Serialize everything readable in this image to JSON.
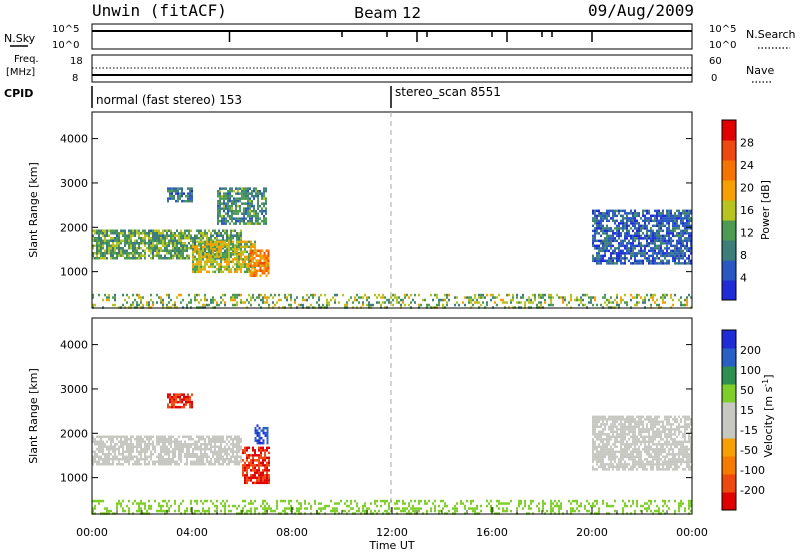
{
  "header": {
    "radar": "Unwin (fitACF)",
    "beam": "Beam 12",
    "date": "09/Aug/2009"
  },
  "panels": {
    "nsky": {
      "label": "N.Sky",
      "ticks": [
        "10^5",
        "10^0"
      ],
      "right_label": "N.Search",
      "right_ticks": [
        "10^5",
        "10^0"
      ]
    },
    "freq": {
      "label_line1": "Freq.",
      "label_line2": "[MHz]",
      "ticks": [
        "18",
        "8"
      ],
      "right_label": "Nave",
      "right_ticks": [
        "60",
        "0"
      ]
    },
    "cpid": {
      "label": "CPID",
      "modes": [
        "normal (fast stereo) 153",
        "stereo_scan 8551"
      ],
      "mode_change_hour": 12
    }
  },
  "colors": {
    "power": [
      "#1f2bd6",
      "#2a58c2",
      "#3d7f78",
      "#4d9a53",
      "#b7c41f",
      "#f5a000",
      "#f57300",
      "#ee4a10",
      "#e00000"
    ],
    "velocity": [
      "#e00000",
      "#ee4a10",
      "#f57a00",
      "#f5a000",
      "#c8c8c2",
      "#c8c8c2",
      "#7fcf2a",
      "#2f8f4f",
      "#2a5fc6",
      "#1f2bd6"
    ]
  },
  "chart_data": [
    {
      "type": "heatmap",
      "title": "",
      "xlabel": "",
      "ylabel": "Slant Range [km]",
      "xlim": [
        0,
        24
      ],
      "ylim": [
        180,
        4600
      ],
      "yticks": [
        "1000",
        "2000",
        "3000",
        "4000"
      ],
      "colorbar": {
        "label": "Power [dB]",
        "ticks": [
          "4",
          "8",
          "12",
          "16",
          "20",
          "24",
          "28"
        ],
        "range": [
          0,
          32
        ]
      },
      "regions": [
        {
          "x": [
            0,
            6.0
          ],
          "y": [
            1300,
            1950
          ],
          "value": 12
        },
        {
          "x": [
            4.0,
            6.5
          ],
          "y": [
            1000,
            1700
          ],
          "value": 16
        },
        {
          "x": [
            6.3,
            7.1
          ],
          "y": [
            900,
            1500
          ],
          "value": 22
        },
        {
          "x": [
            5.0,
            7.0
          ],
          "y": [
            2100,
            2900
          ],
          "value": 10
        },
        {
          "x": [
            3.0,
            4.0
          ],
          "y": [
            2600,
            2900
          ],
          "value": 8
        },
        {
          "x": [
            20.0,
            24.0
          ],
          "y": [
            1200,
            2400
          ],
          "value": 6
        },
        {
          "x": [
            0,
            24.0
          ],
          "y": [
            180,
            500
          ],
          "value": 14
        }
      ]
    },
    {
      "type": "heatmap",
      "title": "",
      "xlabel": "Time UT",
      "ylabel": "Slant Range [km]",
      "xlim": [
        0,
        24
      ],
      "ylim": [
        180,
        4600
      ],
      "xticks": [
        "00:00",
        "04:00",
        "08:00",
        "12:00",
        "16:00",
        "20:00",
        "00:00"
      ],
      "yticks": [
        "1000",
        "2000",
        "3000",
        "4000"
      ],
      "colorbar": {
        "label": "Velocity [m s^-1]",
        "ticks": [
          "200",
          "100",
          "50",
          "15",
          "-15",
          "-50",
          "-100",
          "-200"
        ]
      },
      "regions": [
        {
          "x": [
            0,
            6.0
          ],
          "y": [
            1300,
            1950
          ],
          "value": 0
        },
        {
          "x": [
            6.0,
            7.1
          ],
          "y": [
            900,
            1700
          ],
          "value": -200
        },
        {
          "x": [
            6.5,
            7.0
          ],
          "y": [
            1800,
            2200
          ],
          "value": 200
        },
        {
          "x": [
            3.0,
            4.0
          ],
          "y": [
            2600,
            2900
          ],
          "value": -200
        },
        {
          "x": [
            20.0,
            24.0
          ],
          "y": [
            1200,
            2400
          ],
          "value": 0
        },
        {
          "x": [
            0,
            24.0
          ],
          "y": [
            180,
            500
          ],
          "value": 30
        }
      ]
    }
  ]
}
